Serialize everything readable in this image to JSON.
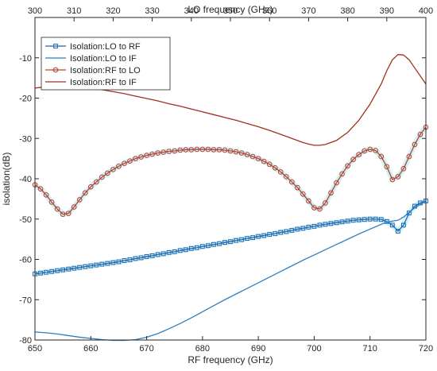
{
  "chart_data": {
    "type": "line",
    "xlabel": "RF frequency (GHz)",
    "x2label": "LO frequency (GHz)",
    "ylabel": "isolation(dB)",
    "xlim": [
      650,
      720
    ],
    "x2lim": [
      300,
      400
    ],
    "ylim": [
      -80,
      0
    ],
    "x_ticks": [
      650,
      660,
      670,
      680,
      690,
      700,
      710,
      720
    ],
    "x2_ticks": [
      300,
      310,
      320,
      330,
      340,
      350,
      360,
      370,
      380,
      390,
      400
    ],
    "y_ticks": [
      -80,
      -70,
      -60,
      -50,
      -40,
      -30,
      -20,
      -10
    ],
    "grid": false,
    "legend_position": "top-left",
    "series": [
      {
        "name": "Isolation:LO to RF",
        "color": "#2166ac",
        "marker": "square",
        "x": [
          650,
          651,
          652,
          653,
          654,
          655,
          656,
          657,
          658,
          659,
          660,
          661,
          662,
          663,
          664,
          665,
          666,
          667,
          668,
          669,
          670,
          671,
          672,
          673,
          674,
          675,
          676,
          677,
          678,
          679,
          680,
          681,
          682,
          683,
          684,
          685,
          686,
          687,
          688,
          689,
          690,
          691,
          692,
          693,
          694,
          695,
          696,
          697,
          698,
          699,
          700,
          701,
          702,
          703,
          704,
          705,
          706,
          707,
          708,
          709,
          710,
          711,
          712,
          713,
          714,
          715,
          716,
          717,
          718,
          719,
          720
        ],
        "y": [
          -63.6,
          -63.4,
          -63.2,
          -63.0,
          -62.8,
          -62.6,
          -62.4,
          -62.2,
          -62.0,
          -61.8,
          -61.6,
          -61.4,
          -61.2,
          -61.0,
          -60.8,
          -60.6,
          -60.3,
          -60.1,
          -59.8,
          -59.6,
          -59.3,
          -59.1,
          -58.8,
          -58.6,
          -58.3,
          -58.1,
          -57.8,
          -57.6,
          -57.3,
          -57.1,
          -56.8,
          -56.6,
          -56.3,
          -56.1,
          -55.8,
          -55.6,
          -55.3,
          -55.1,
          -54.8,
          -54.6,
          -54.3,
          -54.1,
          -53.8,
          -53.6,
          -53.3,
          -53.1,
          -52.8,
          -52.5,
          -52.3,
          -52.0,
          -51.8,
          -51.5,
          -51.3,
          -51.1,
          -50.9,
          -50.7,
          -50.5,
          -50.3,
          -50.2,
          -50.1,
          -50.0,
          -50.0,
          -50.1,
          -50.6,
          -51.5,
          -53.0,
          -51.5,
          -48.5,
          -46.8,
          -46.0,
          -45.5
        ]
      },
      {
        "name": "Isolation:LO to IF",
        "color": "#2b7fc4",
        "marker": "none",
        "x": [
          650,
          652,
          654,
          656,
          658,
          660,
          662,
          664,
          666,
          668,
          670,
          672,
          674,
          676,
          678,
          680,
          682,
          684,
          686,
          688,
          690,
          692,
          694,
          696,
          698,
          700,
          702,
          704,
          706,
          708,
          710,
          712,
          713,
          714,
          715,
          716,
          718,
          720
        ],
        "y": [
          -78.0,
          -78.2,
          -78.5,
          -78.9,
          -79.3,
          -79.6,
          -79.9,
          -80.1,
          -80.1,
          -79.9,
          -79.3,
          -78.4,
          -77.2,
          -75.9,
          -74.5,
          -73.0,
          -71.5,
          -70.0,
          -68.6,
          -67.2,
          -65.8,
          -64.4,
          -63.0,
          -61.6,
          -60.2,
          -58.9,
          -57.6,
          -56.3,
          -55.0,
          -53.7,
          -52.5,
          -51.3,
          -50.8,
          -50.5,
          -50.3,
          -49.5,
          -47.2,
          -45.5
        ]
      },
      {
        "name": "Isolation:RF to LO",
        "color": "#b8402c",
        "marker": "circle",
        "x": [
          650,
          651,
          652,
          653,
          654,
          655,
          656,
          657,
          658,
          659,
          660,
          661,
          662,
          663,
          664,
          665,
          666,
          667,
          668,
          669,
          670,
          671,
          672,
          673,
          674,
          675,
          676,
          677,
          678,
          679,
          680,
          681,
          682,
          683,
          684,
          685,
          686,
          687,
          688,
          689,
          690,
          691,
          692,
          693,
          694,
          695,
          696,
          697,
          698,
          699,
          700,
          701,
          702,
          703,
          704,
          705,
          706,
          707,
          708,
          709,
          710,
          711,
          712,
          713,
          714,
          715,
          716,
          717,
          718,
          719,
          720
        ],
        "y": [
          -41.5,
          -42.5,
          -44.0,
          -45.8,
          -47.5,
          -48.8,
          -48.6,
          -47.0,
          -45.2,
          -43.5,
          -42.0,
          -40.8,
          -39.6,
          -38.6,
          -37.7,
          -36.9,
          -36.2,
          -35.6,
          -35.0,
          -34.6,
          -34.2,
          -33.9,
          -33.6,
          -33.4,
          -33.2,
          -33.1,
          -32.9,
          -32.8,
          -32.8,
          -32.7,
          -32.7,
          -32.7,
          -32.8,
          -32.8,
          -32.9,
          -33.1,
          -33.3,
          -33.6,
          -34.0,
          -34.5,
          -35.0,
          -35.7,
          -36.4,
          -37.3,
          -38.3,
          -39.5,
          -40.8,
          -42.2,
          -43.8,
          -45.5,
          -47.2,
          -47.5,
          -46.0,
          -43.5,
          -41.0,
          -38.8,
          -36.8,
          -35.2,
          -34.0,
          -33.1,
          -32.7,
          -33.0,
          -34.5,
          -37.0,
          -40.2,
          -39.5,
          -37.5,
          -34.5,
          -31.5,
          -29.0,
          -27.2
        ]
      },
      {
        "name": "Isolation:RF to IF",
        "color": "#a0301e",
        "marker": "none",
        "x": [
          650,
          652,
          654,
          656,
          658,
          660,
          662,
          664,
          666,
          668,
          670,
          672,
          674,
          676,
          678,
          680,
          682,
          684,
          686,
          688,
          690,
          692,
          694,
          696,
          698,
          699,
          700,
          701,
          702,
          704,
          706,
          708,
          710,
          712,
          713,
          714,
          715,
          716,
          717,
          718,
          720
        ],
        "y": [
          -17.5,
          -17.2,
          -17.0,
          -17.0,
          -17.2,
          -17.5,
          -17.9,
          -18.4,
          -18.9,
          -19.5,
          -20.1,
          -20.7,
          -21.4,
          -22.0,
          -22.7,
          -23.4,
          -24.1,
          -24.8,
          -25.5,
          -26.3,
          -27.1,
          -28.0,
          -29.0,
          -30.0,
          -31.0,
          -31.4,
          -31.7,
          -31.7,
          -31.5,
          -30.5,
          -28.5,
          -25.5,
          -21.5,
          -16.5,
          -13.2,
          -10.5,
          -9.2,
          -9.3,
          -10.5,
          -12.5,
          -16.5
        ]
      }
    ]
  }
}
